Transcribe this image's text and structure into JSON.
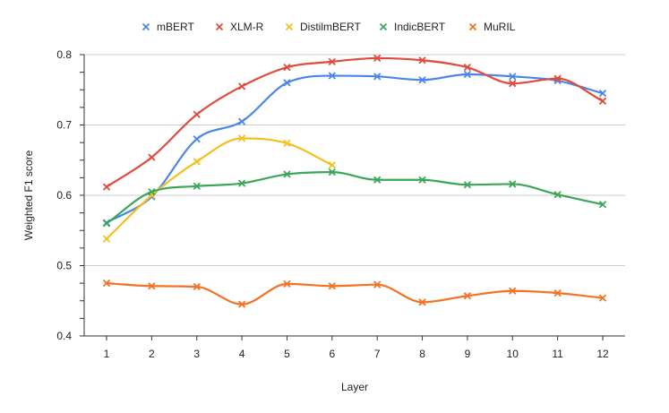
{
  "chart_data": {
    "type": "line",
    "title": "",
    "xlabel": "Layer",
    "ylabel": "Weighted F1 score",
    "ylim": [
      0.4,
      0.8
    ],
    "yticks": [
      "0.4",
      "0.5",
      "0.6",
      "0.7",
      "0.8"
    ],
    "x": [
      1,
      2,
      3,
      4,
      5,
      6,
      7,
      8,
      9,
      10,
      11,
      12
    ],
    "xtick_labels": [
      "1",
      "2",
      "3",
      "4",
      "5",
      "6",
      "7",
      "8",
      "9",
      "10",
      "11",
      "12"
    ],
    "grid": "horizontal",
    "legend_position": "top",
    "marker": "x",
    "smooth": true,
    "series": [
      {
        "name": "mBERT",
        "color": "#4a86e8",
        "values": [
          0.561,
          0.598,
          0.68,
          0.705,
          0.76,
          0.77,
          0.769,
          0.764,
          0.772,
          0.769,
          0.763,
          0.745
        ]
      },
      {
        "name": "XLM-R",
        "color": "#e04b3c",
        "values": [
          0.612,
          0.654,
          0.715,
          0.755,
          0.782,
          0.79,
          0.795,
          0.792,
          0.782,
          0.759,
          0.766,
          0.734
        ]
      },
      {
        "name": "DistilmBERT",
        "color": "#f4c020",
        "values": [
          0.538,
          0.6,
          0.648,
          0.681,
          0.674,
          0.643,
          null,
          null,
          null,
          null,
          null,
          null
        ]
      },
      {
        "name": "IndicBERT",
        "color": "#3aa757",
        "values": [
          0.56,
          0.605,
          0.613,
          0.617,
          0.63,
          0.633,
          0.622,
          0.622,
          0.615,
          0.616,
          0.601,
          0.587
        ]
      },
      {
        "name": "MuRIL",
        "color": "#f47221",
        "values": [
          0.475,
          0.471,
          0.47,
          0.445,
          0.474,
          0.471,
          0.473,
          0.448,
          0.457,
          0.464,
          0.461,
          0.454
        ]
      }
    ]
  }
}
